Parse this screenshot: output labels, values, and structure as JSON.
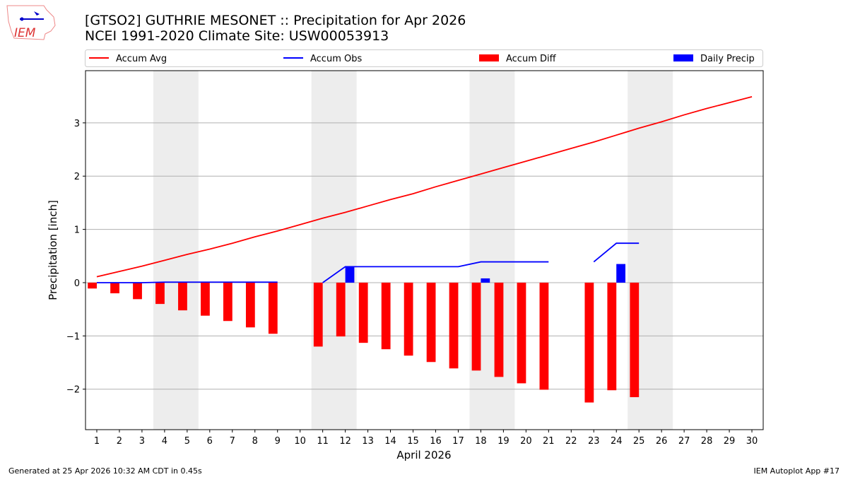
{
  "header": {
    "title": "[GTSO2] GUTHRIE MESONET :: Precipitation for Apr 2026",
    "subtitle": "NCEI 1991-2020 Climate Site: USW00053913",
    "logo_text": "IEM"
  },
  "footer": {
    "left": "Generated at 25 Apr 2026 10:32 AM CDT in 0.45s",
    "right": "IEM Autoplot App #17"
  },
  "chart_data": {
    "type": "bar+line",
    "xlabel": "April 2026",
    "ylabel": "Precipitation [inch]",
    "xlim": [
      0.5,
      30.5
    ],
    "ylim": [
      -2.76,
      3.98
    ],
    "yticks": [
      -2,
      -1,
      0,
      1,
      2,
      3
    ],
    "ytick_labels": [
      "−2",
      "−1",
      "0",
      "1",
      "2",
      "3"
    ],
    "x": [
      1,
      2,
      3,
      4,
      5,
      6,
      7,
      8,
      9,
      10,
      11,
      12,
      13,
      14,
      15,
      16,
      17,
      18,
      19,
      20,
      21,
      22,
      23,
      24,
      25,
      26,
      27,
      28,
      29,
      30
    ],
    "grid": "horizontal",
    "legend_position": "top",
    "weekend_shading": [
      [
        3.5,
        5.5
      ],
      [
        10.5,
        12.5
      ],
      [
        17.5,
        19.5
      ],
      [
        24.5,
        26.5
      ]
    ],
    "series": [
      {
        "name": "Accum Avg",
        "type": "line",
        "color": "#ff0000",
        "values": [
          0.11,
          0.21,
          0.31,
          0.42,
          0.53,
          0.63,
          0.74,
          0.86,
          0.97,
          1.09,
          1.21,
          1.32,
          1.44,
          1.56,
          1.67,
          1.8,
          1.92,
          2.04,
          2.16,
          2.28,
          2.4,
          2.52,
          2.64,
          2.77,
          2.9,
          3.02,
          3.15,
          3.27,
          3.38,
          3.49
        ]
      },
      {
        "name": "Accum Obs",
        "type": "line",
        "color": "#0000ff",
        "values": [
          0,
          0,
          0,
          0.01,
          0.01,
          0.01,
          0.01,
          0.01,
          0.01,
          null,
          0,
          0.3,
          0.3,
          0.3,
          0.3,
          0.3,
          0.3,
          0.39,
          0.39,
          0.39,
          0.39,
          null,
          0.39,
          0.74,
          0.74,
          null,
          null,
          null,
          null,
          null
        ]
      },
      {
        "name": "Accum Diff",
        "type": "bar",
        "color": "#ff0000",
        "values": [
          -0.11,
          -0.2,
          -0.31,
          -0.4,
          -0.52,
          -0.62,
          -0.72,
          -0.84,
          -0.96,
          null,
          -1.2,
          -1.01,
          -1.13,
          -1.25,
          -1.37,
          -1.49,
          -1.61,
          -1.65,
          -1.77,
          -1.89,
          -2.01,
          null,
          -2.25,
          -2.02,
          -2.15,
          null,
          null,
          null,
          null,
          null
        ]
      },
      {
        "name": "Daily Precip",
        "type": "bar",
        "color": "#0000ff",
        "values": [
          0,
          0,
          0,
          0.01,
          0,
          0,
          0,
          0,
          0,
          null,
          0,
          0.3,
          0,
          0,
          0,
          0,
          0,
          0.08,
          0,
          0,
          0,
          null,
          0,
          0.35,
          0,
          null,
          null,
          null,
          null,
          null
        ]
      }
    ]
  }
}
